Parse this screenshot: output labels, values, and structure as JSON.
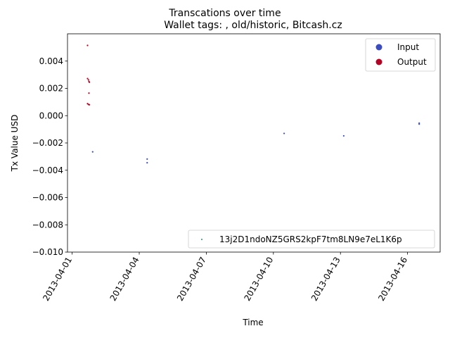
{
  "chart_data": {
    "type": "scatter",
    "title": "Transcations over time",
    "subtitle": "Wallet tags: , old/historic, Bitcash.cz",
    "xlabel": "Time",
    "ylabel": "Tx Value USD",
    "x_type": "date",
    "xlim": [
      "2013-03-31T19:00",
      "2013-04-17T11:00"
    ],
    "ylim": [
      -0.01,
      0.006
    ],
    "x_ticks": [
      "2013-04-01",
      "2013-04-04",
      "2013-04-07",
      "2013-04-10",
      "2013-04-13",
      "2013-04-16"
    ],
    "y_ticks": [
      -0.01,
      -0.008,
      -0.006,
      -0.004,
      -0.002,
      0.0,
      0.002,
      0.004
    ],
    "y_tick_labels": [
      "−0.010",
      "−0.008",
      "−0.006",
      "−0.004",
      "−0.002",
      "0.000",
      "0.002",
      "0.004"
    ],
    "grid": false,
    "legend_top": {
      "placement": "top-right",
      "entries": [
        {
          "label": "Input",
          "color": "#3b4cc0"
        },
        {
          "label": "Output",
          "color": "#b40426"
        }
      ]
    },
    "legend_bottom": {
      "placement": "bottom-right",
      "entries": [
        {
          "label": "13j2D1ndoNZ5GRS2kpF7tm8LN9e7eL1K6p",
          "color": "#2a8f7a"
        }
      ]
    },
    "series": [
      {
        "name": "Input",
        "color": "#3b4cc0",
        "points": [
          {
            "x": "2013-04-01T22:00",
            "y": -0.00265
          },
          {
            "x": "2013-04-04T08:30",
            "y": -0.00318
          },
          {
            "x": "2013-04-04T08:30",
            "y": -0.00345
          },
          {
            "x": "2013-04-10T11:30",
            "y": -0.0013
          },
          {
            "x": "2013-04-13T03:30",
            "y": -0.00148
          },
          {
            "x": "2013-04-16T12:30",
            "y": -0.00055
          },
          {
            "x": "2013-04-16T12:30",
            "y": -0.00062
          }
        ]
      },
      {
        "name": "Output",
        "color": "#b40426",
        "points": [
          {
            "x": "2013-04-01T16:30",
            "y": 0.00515
          },
          {
            "x": "2013-04-01T16:30",
            "y": 0.00272
          },
          {
            "x": "2013-04-01T17:30",
            "y": 0.00262
          },
          {
            "x": "2013-04-01T18:00",
            "y": 0.0025
          },
          {
            "x": "2013-04-01T18:30",
            "y": 0.00245
          },
          {
            "x": "2013-04-01T18:00",
            "y": 0.00165
          },
          {
            "x": "2013-04-01T16:30",
            "y": 0.00088
          },
          {
            "x": "2013-04-01T17:30",
            "y": 0.00082
          },
          {
            "x": "2013-04-01T18:30",
            "y": 0.0008
          }
        ]
      }
    ]
  }
}
